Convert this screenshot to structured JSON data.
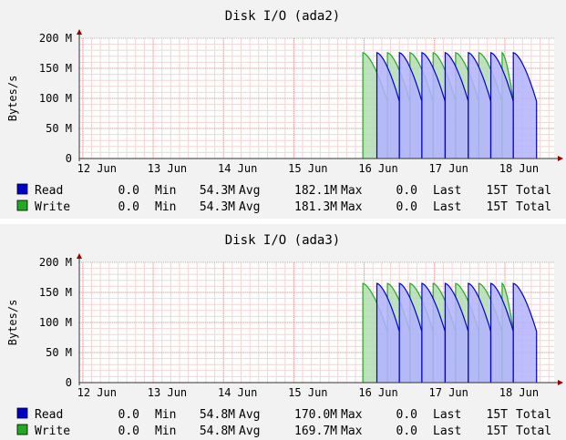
{
  "chart_data": [
    {
      "type": "area",
      "title": "Disk I/O (ada2)",
      "ylabel": "Bytes/s",
      "xlabel": "",
      "x_tick_labels": [
        "12 Jun",
        "13 Jun",
        "14 Jun",
        "15 Jun",
        "16 Jun",
        "17 Jun",
        "18 Jun"
      ],
      "y_tick_labels": [
        "0",
        "50 M",
        "100 M",
        "150 M",
        "200 M"
      ],
      "ylim": [
        0,
        200
      ],
      "xlim_days": [
        11.95,
        18.7
      ],
      "grid": true,
      "colors": {
        "read": "#0000cc",
        "read_fill": "#b3b3ff",
        "write": "#22aa22",
        "write_fill": "#b3ddb3",
        "grid": "#e6a0a0",
        "axis": "#990000"
      },
      "series": [
        {
          "name": "Read",
          "bursts": [
            [
              16.18,
              16.5,
              176,
              95
            ],
            [
              16.5,
              16.82,
              176,
              95
            ],
            [
              16.82,
              17.15,
              176,
              95
            ],
            [
              17.15,
              17.48,
              176,
              95
            ],
            [
              17.48,
              17.8,
              176,
              95
            ],
            [
              17.8,
              18.12,
              176,
              95
            ],
            [
              18.12,
              18.45,
              176,
              95
            ]
          ]
        },
        {
          "name": "Write",
          "bursts": [
            [
              15.98,
              16.33,
              176,
              95
            ],
            [
              16.33,
              16.65,
              176,
              95
            ],
            [
              16.65,
              16.98,
              176,
              95
            ],
            [
              16.98,
              17.3,
              176,
              95
            ],
            [
              17.3,
              17.63,
              176,
              95
            ],
            [
              17.63,
              17.96,
              176,
              95
            ],
            [
              17.96,
              18.12,
              176,
              95
            ]
          ]
        }
      ],
      "legend": [
        {
          "name": "Read",
          "min": "0.0",
          "min_label": "Min",
          "avg": "54.3M",
          "avg_label": "Avg",
          "max": "182.1M",
          "max_label": "Max",
          "last": "0.0",
          "last_label": "Last",
          "total": "15T",
          "total_label": "Total"
        },
        {
          "name": "Write",
          "min": "0.0",
          "min_label": "Min",
          "avg": "54.3M",
          "avg_label": "Avg",
          "max": "181.3M",
          "max_label": "Max",
          "last": "0.0",
          "last_label": "Last",
          "total": "15T",
          "total_label": "Total"
        }
      ]
    },
    {
      "type": "area",
      "title": "Disk I/O (ada3)",
      "ylabel": "Bytes/s",
      "xlabel": "",
      "x_tick_labels": [
        "12 Jun",
        "13 Jun",
        "14 Jun",
        "15 Jun",
        "16 Jun",
        "17 Jun",
        "18 Jun"
      ],
      "y_tick_labels": [
        "0",
        "50 M",
        "100 M",
        "150 M",
        "200 M"
      ],
      "ylim": [
        0,
        200
      ],
      "xlim_days": [
        11.95,
        18.7
      ],
      "grid": true,
      "colors": {
        "read": "#0000cc",
        "read_fill": "#b3b3ff",
        "write": "#22aa22",
        "write_fill": "#b3ddb3",
        "grid": "#e6a0a0",
        "axis": "#990000"
      },
      "series": [
        {
          "name": "Read",
          "bursts": [
            [
              16.18,
              16.5,
              165,
              85
            ],
            [
              16.5,
              16.82,
              165,
              85
            ],
            [
              16.82,
              17.15,
              165,
              85
            ],
            [
              17.15,
              17.48,
              165,
              85
            ],
            [
              17.48,
              17.8,
              165,
              85
            ],
            [
              17.8,
              18.12,
              165,
              85
            ],
            [
              18.12,
              18.45,
              165,
              85
            ]
          ]
        },
        {
          "name": "Write",
          "bursts": [
            [
              15.98,
              16.33,
              165,
              85
            ],
            [
              16.33,
              16.65,
              165,
              85
            ],
            [
              16.65,
              16.98,
              165,
              85
            ],
            [
              16.98,
              17.3,
              165,
              85
            ],
            [
              17.3,
              17.63,
              165,
              85
            ],
            [
              17.63,
              17.96,
              165,
              85
            ],
            [
              17.96,
              18.12,
              165,
              85
            ]
          ]
        }
      ],
      "legend": [
        {
          "name": "Read",
          "min": "0.0",
          "min_label": "Min",
          "avg": "54.8M",
          "avg_label": "Avg",
          "max": "170.0M",
          "max_label": "Max",
          "last": "0.0",
          "last_label": "Last",
          "total": "15T",
          "total_label": "Total"
        },
        {
          "name": "Write",
          "min": "0.0",
          "min_label": "Min",
          "avg": "54.8M",
          "avg_label": "Avg",
          "max": "169.7M",
          "max_label": "Max",
          "last": "0.0",
          "last_label": "Last",
          "total": "15T",
          "total_label": "Total"
        }
      ]
    }
  ]
}
